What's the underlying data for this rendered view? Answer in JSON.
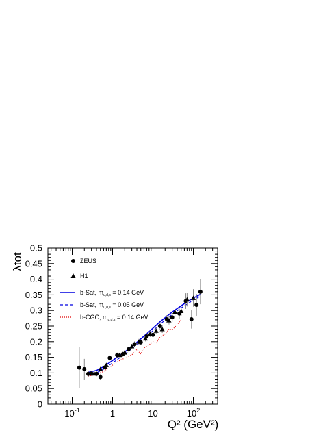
{
  "chart_data": {
    "type": "scatter",
    "xlabel": "Q² (GeV²)",
    "ylabel": "λtot",
    "x_scale": "log",
    "xlim": [
      0.025,
      400
    ],
    "ylim": [
      0,
      0.5
    ],
    "y_ticks": [
      "0",
      "0.05",
      "0.1",
      "0.15",
      "0.2",
      "0.25",
      "0.3",
      "0.35",
      "0.4",
      "0.45",
      "0.5"
    ],
    "x_ticks": [
      {
        "value": 0.1,
        "base": "10",
        "exp": "-1"
      },
      {
        "value": 1,
        "base": "1",
        "exp": ""
      },
      {
        "value": 10,
        "base": "10",
        "exp": ""
      },
      {
        "value": 100,
        "base": "10",
        "exp": "2"
      }
    ],
    "grid": false,
    "legend_position": "top-left",
    "series": [
      {
        "name": "ZEUS",
        "kind": "points",
        "marker": "circle",
        "color": "#000000",
        "points": [
          {
            "x": 0.15,
            "y": 0.117,
            "err": 0.065
          },
          {
            "x": 0.2,
            "y": 0.112,
            "err": 0.033
          },
          {
            "x": 0.25,
            "y": 0.097,
            "err": 0.01
          },
          {
            "x": 0.3,
            "y": 0.098,
            "err": 0.008
          },
          {
            "x": 0.4,
            "y": 0.097,
            "err": 0.008
          },
          {
            "x": 0.5,
            "y": 0.087,
            "err": 0.01
          },
          {
            "x": 0.65,
            "y": 0.118,
            "err": 0.009
          },
          {
            "x": 0.85,
            "y": 0.148,
            "err": 0.008
          },
          {
            "x": 1.3,
            "y": 0.157,
            "err": 0.008
          },
          {
            "x": 1.8,
            "y": 0.16,
            "err": 0.008
          },
          {
            "x": 2.5,
            "y": 0.176,
            "err": 0.008
          },
          {
            "x": 3.5,
            "y": 0.192,
            "err": 0.009
          },
          {
            "x": 5,
            "y": 0.198,
            "err": 0.009
          },
          {
            "x": 7,
            "y": 0.217,
            "err": 0.01
          },
          {
            "x": 10,
            "y": 0.222,
            "err": 0.01
          },
          {
            "x": 15,
            "y": 0.25,
            "err": 0.012
          },
          {
            "x": 22,
            "y": 0.272,
            "err": 0.013
          },
          {
            "x": 30,
            "y": 0.278,
            "err": 0.014
          },
          {
            "x": 45,
            "y": 0.29,
            "err": 0.016
          },
          {
            "x": 65,
            "y": 0.33,
            "err": 0.025
          },
          {
            "x": 90,
            "y": 0.272,
            "err": 0.03
          },
          {
            "x": 120,
            "y": 0.318,
            "err": 0.035
          },
          {
            "x": 150,
            "y": 0.36,
            "err": 0.04
          }
        ]
      },
      {
        "name": "H1",
        "kind": "points",
        "marker": "triangle",
        "color": "#000000",
        "points": [
          {
            "x": 0.35,
            "y": 0.098,
            "err": 0.006
          },
          {
            "x": 0.5,
            "y": 0.112,
            "err": 0.007
          },
          {
            "x": 0.7,
            "y": 0.125,
            "err": 0.007
          },
          {
            "x": 1.5,
            "y": 0.157,
            "err": 0.007
          },
          {
            "x": 2,
            "y": 0.165,
            "err": 0.008
          },
          {
            "x": 3,
            "y": 0.185,
            "err": 0.008
          },
          {
            "x": 4.5,
            "y": 0.2,
            "err": 0.009
          },
          {
            "x": 6.5,
            "y": 0.21,
            "err": 0.009
          },
          {
            "x": 8.5,
            "y": 0.225,
            "err": 0.01
          },
          {
            "x": 12,
            "y": 0.235,
            "err": 0.01
          },
          {
            "x": 17,
            "y": 0.24,
            "err": 0.012
          },
          {
            "x": 25,
            "y": 0.268,
            "err": 0.013
          },
          {
            "x": 35,
            "y": 0.295,
            "err": 0.015
          },
          {
            "x": 50,
            "y": 0.298,
            "err": 0.016
          },
          {
            "x": 70,
            "y": 0.335,
            "err": 0.022
          },
          {
            "x": 100,
            "y": 0.34,
            "err": 0.028
          }
        ]
      },
      {
        "name": "b-Sat, m = 0.14 GeV",
        "label_parts": {
          "prefix": "b-Sat, m",
          "subscript": "u,d,s",
          "suffix": "= 0.14 GeV"
        },
        "kind": "line",
        "style": "solid",
        "color": "#0000e0",
        "points": [
          {
            "x": 0.25,
            "y": 0.102
          },
          {
            "x": 0.4,
            "y": 0.108
          },
          {
            "x": 0.6,
            "y": 0.12
          },
          {
            "x": 1,
            "y": 0.14
          },
          {
            "x": 2,
            "y": 0.167
          },
          {
            "x": 4,
            "y": 0.198
          },
          {
            "x": 8,
            "y": 0.232
          },
          {
            "x": 15,
            "y": 0.264
          },
          {
            "x": 30,
            "y": 0.295
          },
          {
            "x": 60,
            "y": 0.322
          },
          {
            "x": 100,
            "y": 0.34
          },
          {
            "x": 150,
            "y": 0.352
          }
        ]
      },
      {
        "name": "b-Sat, m = 0.05 GeV",
        "label_parts": {
          "prefix": "b-Sat, m",
          "subscript": "u,d,s",
          "suffix": "= 0.05 GeV"
        },
        "kind": "line",
        "style": "dashed",
        "color": "#0000e0",
        "points": [
          {
            "x": 0.25,
            "y": 0.092
          },
          {
            "x": 0.4,
            "y": 0.1
          },
          {
            "x": 0.6,
            "y": 0.112
          },
          {
            "x": 1,
            "y": 0.132
          },
          {
            "x": 2,
            "y": 0.16
          },
          {
            "x": 4,
            "y": 0.19
          },
          {
            "x": 8,
            "y": 0.224
          },
          {
            "x": 15,
            "y": 0.256
          },
          {
            "x": 30,
            "y": 0.288
          },
          {
            "x": 60,
            "y": 0.315
          },
          {
            "x": 100,
            "y": 0.333
          },
          {
            "x": 150,
            "y": 0.346
          }
        ]
      },
      {
        "name": "b-CGC, m = 0.14 GeV",
        "label_parts": {
          "prefix": "b-CGC, m",
          "subscript": "u,d,s",
          "suffix": "= 0.14 GeV"
        },
        "kind": "line",
        "style": "dotted",
        "color": "#e00000",
        "points": [
          {
            "x": 0.25,
            "y": 0.09
          },
          {
            "x": 0.4,
            "y": 0.095
          },
          {
            "x": 0.6,
            "y": 0.105
          },
          {
            "x": 1,
            "y": 0.125
          },
          {
            "x": 1.5,
            "y": 0.14
          },
          {
            "x": 2.2,
            "y": 0.15
          },
          {
            "x": 3,
            "y": 0.158
          },
          {
            "x": 4,
            "y": 0.175
          },
          {
            "x": 5,
            "y": 0.16
          },
          {
            "x": 6,
            "y": 0.18
          },
          {
            "x": 8,
            "y": 0.19
          },
          {
            "x": 10,
            "y": 0.2
          },
          {
            "x": 12,
            "y": 0.195
          },
          {
            "x": 15,
            "y": 0.215
          },
          {
            "x": 20,
            "y": 0.225
          },
          {
            "x": 25,
            "y": 0.24
          },
          {
            "x": 30,
            "y": 0.238
          },
          {
            "x": 40,
            "y": 0.255
          },
          {
            "x": 50,
            "y": 0.27
          }
        ]
      }
    ]
  }
}
